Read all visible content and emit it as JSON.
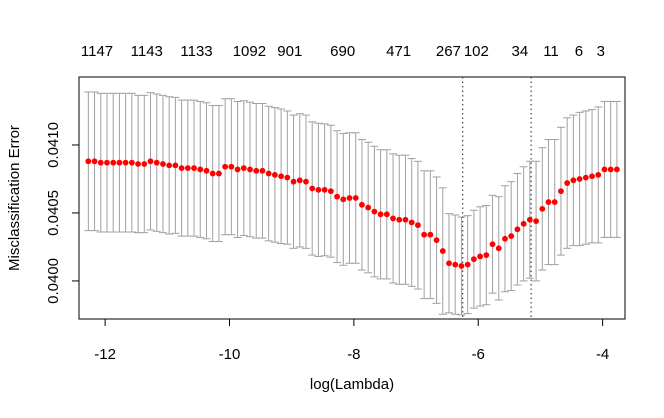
{
  "chart_data": {
    "type": "scatter",
    "title": "",
    "xlabel": "log(Lambda)",
    "ylabel": "Misclassification Error",
    "xlim": [
      -12.42,
      -3.64
    ],
    "ylim": [
      0.03972,
      0.0415
    ],
    "x_ticks": [
      -12,
      -10,
      -8,
      -6,
      -4
    ],
    "x_tick_labels": [
      "-12",
      "-10",
      "-8",
      "-6",
      "-4"
    ],
    "y_ticks": [
      0.04,
      0.0405,
      0.041
    ],
    "y_tick_labels": [
      "0.0400",
      "0.0405",
      "0.0410"
    ],
    "top_axis_x": [
      -12.13,
      -11.33,
      -10.53,
      -9.68,
      -9.03,
      -8.18,
      -7.28,
      -6.48,
      -6.03,
      -5.33,
      -4.83,
      -4.38,
      -4.03
    ],
    "top_axis_labels": [
      "1147",
      "1143",
      "1133",
      "1092",
      "901",
      "690",
      "471",
      "267",
      "102",
      "34",
      "11",
      "6",
      "3"
    ],
    "vlines": [
      -6.25,
      -5.15
    ],
    "grid": false,
    "point_color": "#ff0000",
    "errorbar_color": "#a0a0a0",
    "series": [
      {
        "x": [
          -12.27,
          -12.17,
          -12.07,
          -11.97,
          -11.87,
          -11.77,
          -11.67,
          -11.57,
          -11.47,
          -11.37,
          -11.27,
          -11.17,
          -11.07,
          -10.97,
          -10.87,
          -10.77,
          -10.67,
          -10.57,
          -10.47,
          -10.37,
          -10.27,
          -10.17,
          -10.07,
          -9.97,
          -9.87,
          -9.77,
          -9.67,
          -9.57,
          -9.47,
          -9.37,
          -9.27,
          -9.17,
          -9.07,
          -8.97,
          -8.87,
          -8.77,
          -8.67,
          -8.57,
          -8.47,
          -8.37,
          -8.27,
          -8.17,
          -8.07,
          -7.97,
          -7.87,
          -7.77,
          -7.67,
          -7.57,
          -7.47,
          -7.37,
          -7.27,
          -7.17,
          -7.07,
          -6.97,
          -6.87,
          -6.77,
          -6.67,
          -6.57,
          -6.47,
          -6.37,
          -6.27,
          -6.17,
          -6.07,
          -5.97,
          -5.87,
          -5.77,
          -5.67,
          -5.57,
          -5.47,
          -5.37,
          -5.27,
          -5.17,
          -5.07,
          -4.97,
          -4.87,
          -4.77,
          -4.67,
          -4.57,
          -4.47,
          -4.37,
          -4.27,
          -4.17,
          -4.07,
          -3.97,
          -3.87,
          -3.77
        ],
        "y": [
          0.04088,
          0.04088,
          0.04087,
          0.04087,
          0.04087,
          0.04087,
          0.04087,
          0.04087,
          0.04086,
          0.04086,
          0.04088,
          0.04087,
          0.04086,
          0.04085,
          0.04085,
          0.04083,
          0.04083,
          0.04083,
          0.04082,
          0.04081,
          0.04079,
          0.04079,
          0.04084,
          0.04084,
          0.04082,
          0.04083,
          0.04082,
          0.04081,
          0.04081,
          0.04079,
          0.04078,
          0.04077,
          0.04076,
          0.04073,
          0.04074,
          0.04073,
          0.04068,
          0.04067,
          0.04067,
          0.04066,
          0.04062,
          0.0406,
          0.04061,
          0.04061,
          0.04056,
          0.04054,
          0.04051,
          0.04049,
          0.04049,
          0.04046,
          0.04045,
          0.04045,
          0.04043,
          0.04041,
          0.04034,
          0.04034,
          0.0403,
          0.04022,
          0.04013,
          0.04012,
          0.04011,
          0.04012,
          0.04016,
          0.04018,
          0.04019,
          0.04027,
          0.04024,
          0.04031,
          0.04033,
          0.04038,
          0.04042,
          0.04045,
          0.04044,
          0.04053,
          0.04058,
          0.04058,
          0.04066,
          0.04072,
          0.04074,
          0.04075,
          0.04076,
          0.04077,
          0.04078,
          0.04082,
          0.04082,
          0.04082
        ],
        "err": [
          0.00051,
          0.00051,
          0.00051,
          0.00051,
          0.00051,
          0.00051,
          0.00051,
          0.00051,
          0.000505,
          0.000505,
          0.000505,
          0.000505,
          0.000505,
          0.000505,
          0.0005,
          0.0005,
          0.0005,
          0.0005,
          0.0005,
          0.0005,
          0.0005,
          0.0005,
          0.0005,
          0.0005,
          0.0005,
          0.000495,
          0.000495,
          0.000495,
          0.000495,
          0.000495,
          0.000495,
          0.000495,
          0.00049,
          0.00049,
          0.00049,
          0.00049,
          0.00049,
          0.00049,
          0.000485,
          0.000485,
          0.000485,
          0.000485,
          0.00048,
          0.00048,
          0.00048,
          0.00048,
          0.00048,
          0.000475,
          0.000475,
          0.000475,
          0.000475,
          0.000475,
          0.00047,
          0.00047,
          0.00047,
          0.00047,
          0.000465,
          0.000465,
          0.000365,
          0.000365,
          0.00036,
          0.00036,
          0.00036,
          0.000365,
          0.000365,
          0.00036,
          0.00038,
          0.00039,
          0.0004,
          0.00041,
          0.00042,
          0.00043,
          0.00044,
          0.00045,
          0.00046,
          0.00046,
          0.00047,
          0.00048,
          0.00048,
          0.00049,
          0.00049,
          0.00049,
          0.0005,
          0.0005,
          0.0005,
          0.0005
        ]
      }
    ]
  }
}
